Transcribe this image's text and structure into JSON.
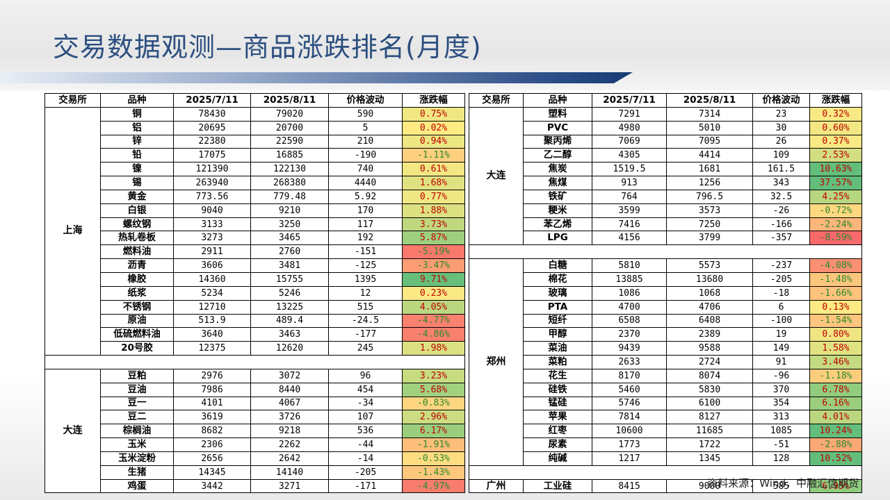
{
  "title": "交易数据观测—商品涨跌排名(月度)",
  "source": "资料来源：Wind，中融汇信期货",
  "headers": [
    "交易所",
    "品种",
    "2025/7/11",
    "2025/8/11",
    "价格波动",
    "涨跌幅"
  ],
  "left_groups": [
    {
      "exchange": "上海",
      "rows": [
        [
          "铜",
          "78430",
          "79020",
          "590",
          "0.75%"
        ],
        [
          "铝",
          "20695",
          "20700",
          "5",
          "0.02%"
        ],
        [
          "锌",
          "22380",
          "22590",
          "210",
          "0.94%"
        ],
        [
          "铅",
          "17075",
          "16885",
          "-190",
          "-1.11%"
        ],
        [
          "镍",
          "121390",
          "122130",
          "740",
          "0.61%"
        ],
        [
          "锡",
          "263940",
          "268380",
          "4440",
          "1.68%"
        ],
        [
          "黄金",
          "773.56",
          "779.48",
          "5.92",
          "0.77%"
        ],
        [
          "白银",
          "9040",
          "9210",
          "170",
          "1.88%"
        ],
        [
          "螺纹钢",
          "3133",
          "3250",
          "117",
          "3.73%"
        ],
        [
          "热轧卷板",
          "3273",
          "3465",
          "192",
          "5.87%"
        ],
        [
          "燃料油",
          "2911",
          "2760",
          "-151",
          "-5.19%"
        ],
        [
          "沥青",
          "3606",
          "3481",
          "-125",
          "-3.47%"
        ],
        [
          "橡胶",
          "14360",
          "15755",
          "1395",
          "9.71%"
        ],
        [
          "纸浆",
          "5234",
          "5246",
          "12",
          "0.23%"
        ],
        [
          "不锈钢",
          "12710",
          "13225",
          "515",
          "4.05%"
        ],
        [
          "原油",
          "513.9",
          "489.4",
          "-24.5",
          "-4.77%"
        ],
        [
          "低硫燃料油",
          "3640",
          "3463",
          "-177",
          "-4.86%"
        ],
        [
          "20号胶",
          "12375",
          "12620",
          "245",
          "1.98%"
        ]
      ]
    },
    {
      "exchange": "大连",
      "rows": [
        [
          "豆粕",
          "2976",
          "3072",
          "96",
          "3.23%"
        ],
        [
          "豆油",
          "7986",
          "8440",
          "454",
          "5.68%"
        ],
        [
          "豆一",
          "4101",
          "4067",
          "-34",
          "-0.83%"
        ],
        [
          "豆二",
          "3619",
          "3726",
          "107",
          "2.96%"
        ],
        [
          "棕榈油",
          "8682",
          "9218",
          "536",
          "6.17%"
        ],
        [
          "玉米",
          "2306",
          "2262",
          "-44",
          "-1.91%"
        ],
        [
          "玉米淀粉",
          "2656",
          "2642",
          "-14",
          "-0.53%"
        ],
        [
          "生猪",
          "14345",
          "14140",
          "-205",
          "-1.43%"
        ],
        [
          "鸡蛋",
          "3442",
          "3271",
          "-171",
          "-4.97%"
        ]
      ]
    }
  ],
  "right_groups": [
    {
      "exchange": "大连",
      "rows": [
        [
          "塑料",
          "7291",
          "7314",
          "23",
          "0.32%"
        ],
        [
          "PVC",
          "4980",
          "5010",
          "30",
          "0.60%"
        ],
        [
          "聚丙烯",
          "7069",
          "7095",
          "26",
          "0.37%"
        ],
        [
          "乙二醇",
          "4305",
          "4414",
          "109",
          "2.53%"
        ],
        [
          "焦炭",
          "1519.5",
          "1681",
          "161.5",
          "10.63%"
        ],
        [
          "焦煤",
          "913",
          "1256",
          "343",
          "37.57%"
        ],
        [
          "铁矿",
          "764",
          "796.5",
          "32.5",
          "4.25%"
        ],
        [
          "粳米",
          "3599",
          "3573",
          "-26",
          "-0.72%"
        ],
        [
          "苯乙烯",
          "7416",
          "7250",
          "-166",
          "-2.24%"
        ],
        [
          "LPG",
          "4156",
          "3799",
          "-357",
          "-8.59%"
        ]
      ]
    },
    {
      "exchange": "郑州",
      "rows": [
        [
          "白糖",
          "5810",
          "5573",
          "-237",
          "-4.08%"
        ],
        [
          "棉花",
          "13885",
          "13680",
          "-205",
          "-1.48%"
        ],
        [
          "玻璃",
          "1086",
          "1068",
          "-18",
          "-1.66%"
        ],
        [
          "PTA",
          "4700",
          "4706",
          "6",
          "0.13%"
        ],
        [
          "短纤",
          "6508",
          "6408",
          "-100",
          "-1.54%"
        ],
        [
          "甲醇",
          "2370",
          "2389",
          "19",
          "0.80%"
        ],
        [
          "菜油",
          "9439",
          "9588",
          "149",
          "1.58%"
        ],
        [
          "菜粕",
          "2633",
          "2724",
          "91",
          "3.46%"
        ],
        [
          "花生",
          "8170",
          "8074",
          "-96",
          "-1.18%"
        ],
        [
          "硅铁",
          "5460",
          "5830",
          "370",
          "6.78%"
        ],
        [
          "锰硅",
          "5746",
          "6100",
          "354",
          "6.16%"
        ],
        [
          "苹果",
          "7814",
          "8127",
          "313",
          "4.01%"
        ],
        [
          "红枣",
          "10600",
          "11685",
          "1085",
          "10.24%"
        ],
        [
          "尿素",
          "1773",
          "1722",
          "-51",
          "-2.88%"
        ],
        [
          "纯碱",
          "1217",
          "1345",
          "128",
          "10.52%"
        ]
      ]
    },
    {
      "exchange": "广州",
      "rows": [
        [
          "工业硅",
          "8415",
          "9000",
          "585",
          "6.95%"
        ]
      ]
    }
  ],
  "colors": {
    "title": "#2c4f80",
    "scale_negative_max": "#f8696b",
    "scale_mid": "#ffeb84",
    "scale_positive_max": "#63be7b",
    "text_positive": "#c00000",
    "text_negative": "#2a8a2a"
  }
}
